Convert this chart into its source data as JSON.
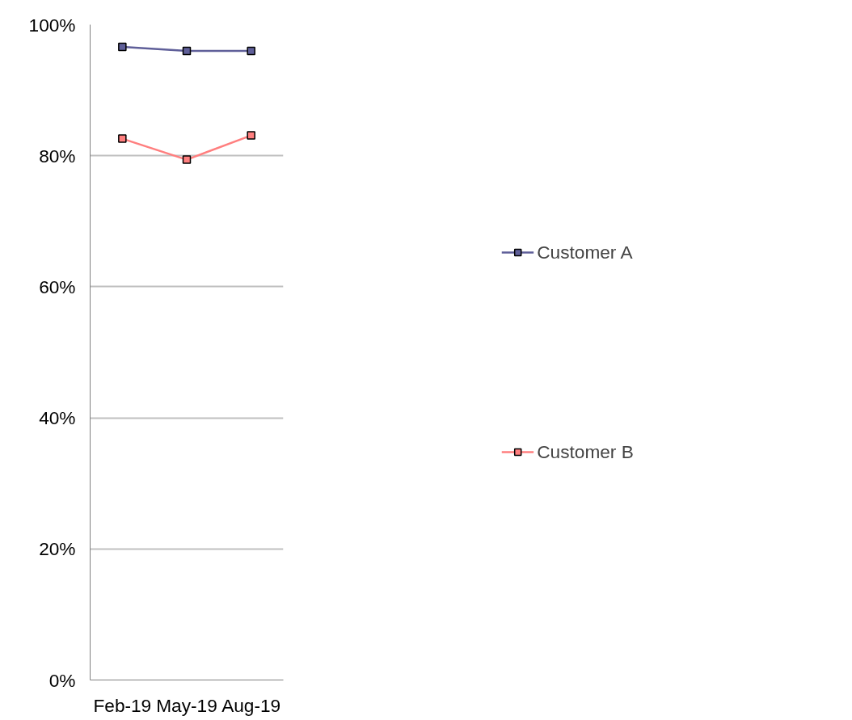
{
  "chart_data": {
    "type": "line",
    "categories": [
      "Feb-19",
      "May-19",
      "Aug-19"
    ],
    "series": [
      {
        "name": "Customer A",
        "color": "#5f5f99",
        "values": [
          96.6,
          96.0,
          96.0
        ]
      },
      {
        "name": "Customer B",
        "color": "#ff7f7f",
        "values": [
          82.6,
          79.4,
          83.1
        ]
      }
    ],
    "ylim": [
      0,
      100
    ],
    "yticks": [
      {
        "value": 0,
        "label": "0%"
      },
      {
        "value": 20,
        "label": "20%"
      },
      {
        "value": 40,
        "label": "40%"
      },
      {
        "value": 60,
        "label": "60%"
      },
      {
        "value": 80,
        "label": "80%"
      },
      {
        "value": 100,
        "label": "100%"
      }
    ],
    "grid": "y",
    "legend": "right",
    "marker": "square",
    "line_style": "solid"
  }
}
